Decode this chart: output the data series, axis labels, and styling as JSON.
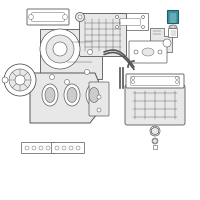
{
  "background_color": "#ffffff",
  "figsize": [
    2.0,
    2.0
  ],
  "dpi": 100,
  "highlight_color": "#3a8fa0",
  "line_color": "#555555",
  "line_width": 0.5,
  "part_fill": "#f5f5f5",
  "part_edge": "#555555",
  "highlight_edge": "#1a5f6a",
  "white": "#ffffff",
  "light_gray": "#e8e8e8",
  "mid_gray": "#cccccc"
}
